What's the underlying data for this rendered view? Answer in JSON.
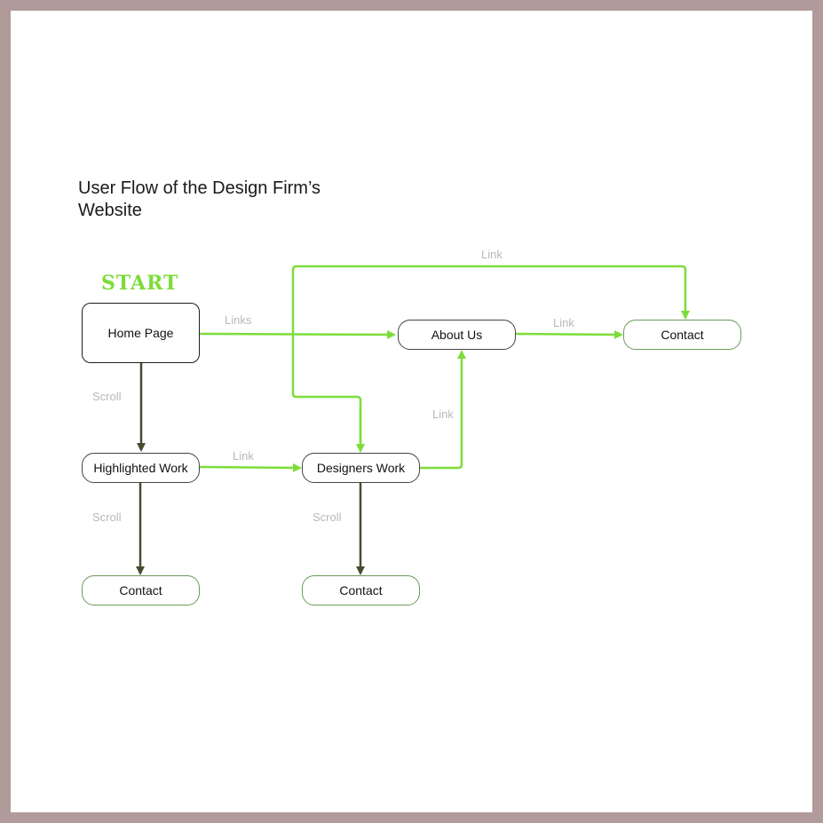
{
  "diagram": {
    "title_line1": "User Flow of the Design Firm’s",
    "title_line2": "Website",
    "start_label": "START",
    "nodes": {
      "home": "Home Page",
      "about": "About Us",
      "contact_top": "Contact",
      "highlighted": "Highlighted Work",
      "designers": "Designers Work",
      "contact_left": "Contact",
      "contact_mid": "Contact"
    },
    "edges": {
      "home_to_about": "Links",
      "top_link": "Link",
      "about_to_contact": "Link",
      "designers_to_about": "Link",
      "home_to_highlighted": "Scroll",
      "highlighted_to_designers": "Link",
      "highlighted_to_contact": "Scroll",
      "designers_to_contact": "Scroll"
    },
    "colors": {
      "link": "#7ddc3a",
      "scroll": "#454d30",
      "frame": "#b09a9a"
    }
  }
}
